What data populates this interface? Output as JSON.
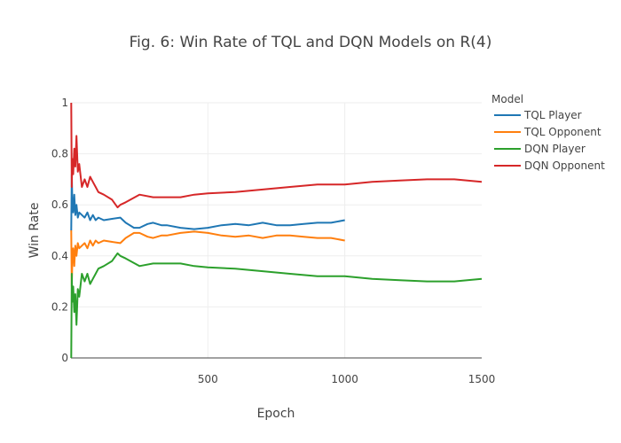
{
  "chart_data": {
    "type": "line",
    "title": "Fig. 6: Win Rate of TQL and DQN Models on R(4)",
    "xlabel": "Epoch",
    "ylabel": "Win Rate",
    "xlim": [
      0,
      1500
    ],
    "ylim": [
      0,
      1
    ],
    "xticks": [
      "500",
      "1000",
      "1500"
    ],
    "xtick_values": [
      500,
      1000,
      1500
    ],
    "yticks": [
      "0",
      "0.2",
      "0.4",
      "0.6",
      "0.8",
      "1"
    ],
    "ytick_values": [
      0,
      0.2,
      0.4,
      0.6,
      0.8,
      1
    ],
    "grid": true,
    "legend": {
      "title": "Model",
      "placement": "right"
    },
    "series": [
      {
        "name": "TQL Player",
        "color": "#1f77b4",
        "x": [
          1,
          3,
          5,
          8,
          12,
          16,
          20,
          25,
          30,
          40,
          50,
          60,
          70,
          80,
          90,
          100,
          120,
          150,
          180,
          200,
          230,
          250,
          280,
          300,
          330,
          350,
          400,
          450,
          500,
          550,
          600,
          650,
          700,
          750,
          800,
          850,
          900,
          950,
          1000
        ],
        "values": [
          0.5,
          0.72,
          0.62,
          0.57,
          0.64,
          0.56,
          0.6,
          0.55,
          0.57,
          0.56,
          0.55,
          0.57,
          0.54,
          0.56,
          0.54,
          0.55,
          0.54,
          0.545,
          0.55,
          0.53,
          0.51,
          0.51,
          0.525,
          0.53,
          0.52,
          0.52,
          0.51,
          0.505,
          0.51,
          0.52,
          0.525,
          0.52,
          0.53,
          0.52,
          0.52,
          0.525,
          0.53,
          0.53,
          0.54
        ]
      },
      {
        "name": "TQL Opponent",
        "color": "#ff7f0e",
        "x": [
          1,
          3,
          5,
          8,
          12,
          16,
          20,
          25,
          30,
          40,
          50,
          60,
          70,
          80,
          90,
          100,
          120,
          150,
          180,
          200,
          230,
          250,
          280,
          300,
          330,
          350,
          400,
          450,
          500,
          550,
          600,
          650,
          700,
          750,
          800,
          850,
          900,
          950,
          1000
        ],
        "values": [
          0.5,
          0.28,
          0.38,
          0.43,
          0.36,
          0.44,
          0.4,
          0.45,
          0.43,
          0.44,
          0.45,
          0.43,
          0.46,
          0.44,
          0.46,
          0.45,
          0.46,
          0.455,
          0.45,
          0.47,
          0.49,
          0.49,
          0.475,
          0.47,
          0.48,
          0.48,
          0.49,
          0.495,
          0.49,
          0.48,
          0.475,
          0.48,
          0.47,
          0.48,
          0.48,
          0.475,
          0.47,
          0.47,
          0.46
        ]
      },
      {
        "name": "DQN Player",
        "color": "#2ca02c",
        "x": [
          1,
          3,
          5,
          8,
          12,
          16,
          20,
          25,
          30,
          40,
          50,
          60,
          70,
          80,
          90,
          100,
          120,
          150,
          170,
          180,
          200,
          250,
          300,
          350,
          400,
          450,
          500,
          600,
          700,
          800,
          900,
          1000,
          1100,
          1200,
          1300,
          1400,
          1500
        ],
        "values": [
          0.0,
          0.33,
          0.22,
          0.28,
          0.18,
          0.25,
          0.13,
          0.27,
          0.24,
          0.33,
          0.3,
          0.33,
          0.29,
          0.31,
          0.33,
          0.35,
          0.36,
          0.38,
          0.41,
          0.4,
          0.39,
          0.36,
          0.37,
          0.37,
          0.37,
          0.36,
          0.355,
          0.35,
          0.34,
          0.33,
          0.32,
          0.32,
          0.31,
          0.305,
          0.3,
          0.3,
          0.31
        ]
      },
      {
        "name": "DQN Opponent",
        "color": "#d62728",
        "x": [
          1,
          3,
          5,
          8,
          12,
          16,
          20,
          25,
          30,
          40,
          50,
          60,
          70,
          80,
          90,
          100,
          120,
          150,
          170,
          180,
          200,
          250,
          300,
          350,
          400,
          450,
          500,
          600,
          700,
          800,
          900,
          1000,
          1100,
          1200,
          1300,
          1400,
          1500
        ],
        "values": [
          1.0,
          0.67,
          0.78,
          0.72,
          0.82,
          0.75,
          0.87,
          0.73,
          0.76,
          0.67,
          0.7,
          0.67,
          0.71,
          0.69,
          0.67,
          0.65,
          0.64,
          0.62,
          0.59,
          0.6,
          0.61,
          0.64,
          0.63,
          0.63,
          0.63,
          0.64,
          0.645,
          0.65,
          0.66,
          0.67,
          0.68,
          0.68,
          0.69,
          0.695,
          0.7,
          0.7,
          0.69
        ]
      }
    ]
  }
}
